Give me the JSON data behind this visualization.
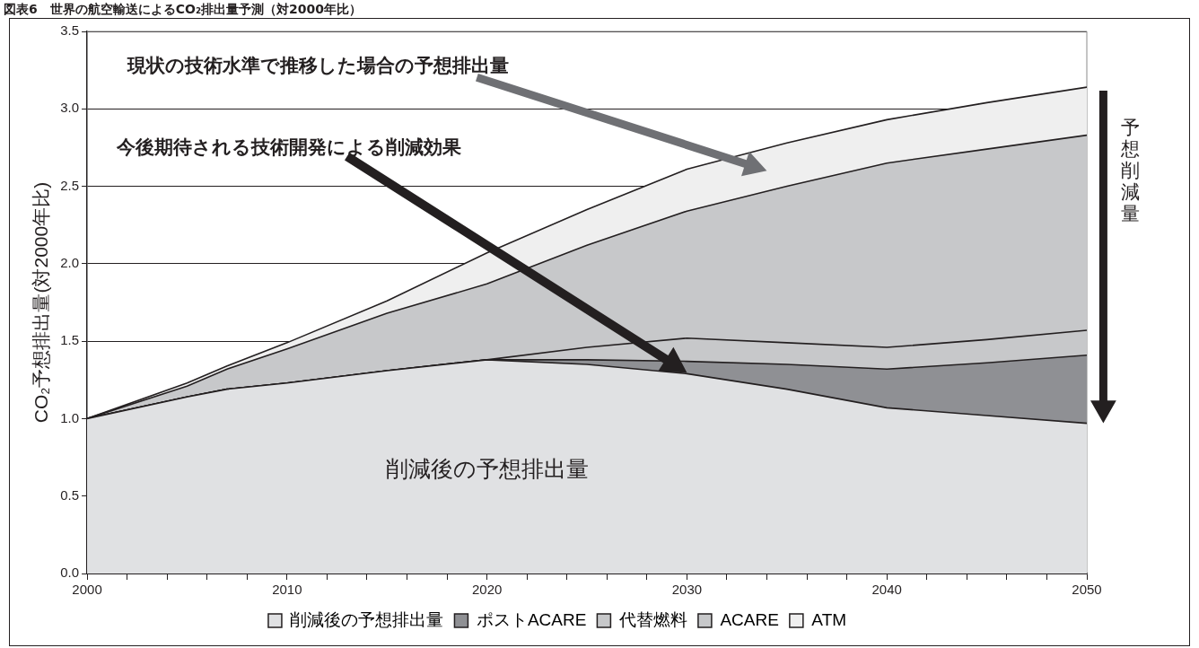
{
  "chart_data": {
    "type": "area",
    "stacked": true,
    "title": "図表6　世界の航空輸送によるCO₂排出量予測（対2000年比）",
    "ylabel": "CO₂予想排出量(対2000年比)",
    "x": [
      2000,
      2005,
      2007,
      2010,
      2015,
      2020,
      2025,
      2030,
      2035,
      2040,
      2045,
      2050
    ],
    "series": [
      {
        "name": "削減後の予想排出量",
        "color": "#e0e1e3",
        "values": [
          1.0,
          1.14,
          1.19,
          1.23,
          1.31,
          1.38,
          1.35,
          1.29,
          1.19,
          1.07,
          1.02,
          0.97
        ]
      },
      {
        "name": "ポストACARE",
        "color": "#8f9094",
        "values": [
          0,
          0,
          0,
          0,
          0,
          0,
          0.03,
          0.08,
          0.16,
          0.25,
          0.34,
          0.44
        ]
      },
      {
        "name": "代替燃料",
        "color": "#c7c8ca",
        "values": [
          0,
          0,
          0,
          0,
          0,
          0,
          0.08,
          0.15,
          0.14,
          0.14,
          0.15,
          0.16
        ]
      },
      {
        "name": "ACARE",
        "color": "#c7c8ca",
        "values": [
          0,
          0.07,
          0.13,
          0.22,
          0.37,
          0.49,
          0.66,
          0.82,
          1.01,
          1.19,
          1.23,
          1.26
        ]
      },
      {
        "name": "ATM",
        "color": "#efefef",
        "values": [
          0,
          0.02,
          0.02,
          0.04,
          0.08,
          0.2,
          0.23,
          0.27,
          0.28,
          0.28,
          0.3,
          0.31
        ]
      }
    ],
    "xlim": [
      2000,
      2050
    ],
    "xticks": [
      2000,
      {
        "value": 2002,
        "label": null
      },
      {
        "value": 2004,
        "label": null
      },
      {
        "value": 2006,
        "label": null
      },
      {
        "value": 2008,
        "label": null
      },
      2010,
      {
        "value": 2012,
        "label": null
      },
      {
        "value": 2014,
        "label": null
      },
      {
        "value": 2016,
        "label": null
      },
      {
        "value": 2018,
        "label": null
      },
      2020,
      {
        "value": 2022,
        "label": null
      },
      {
        "value": 2024,
        "label": null
      },
      {
        "value": 2026,
        "label": null
      },
      {
        "value": 2028,
        "label": null
      },
      2030,
      {
        "value": 2032,
        "label": null
      },
      {
        "value": 2034,
        "label": null
      },
      {
        "value": 2036,
        "label": null
      },
      {
        "value": 2038,
        "label": null
      },
      2040,
      {
        "value": 2042,
        "label": null
      },
      {
        "value": 2044,
        "label": null
      },
      {
        "value": 2046,
        "label": null
      },
      {
        "value": 2048,
        "label": null
      },
      2050
    ],
    "ylim": [
      0,
      3.5
    ],
    "yticks": [
      {
        "value": 0,
        "label": "0.0"
      },
      0.5,
      {
        "value": 1,
        "label": "1.0"
      },
      1.5,
      {
        "value": 2,
        "label": "2.0"
      },
      2.5,
      {
        "value": 3,
        "label": "3.0"
      },
      3.5
    ],
    "grid": "y",
    "legend": "bottom",
    "annotations": [
      "現状の技術水準で推移した場合の予想排出量",
      "今後期待される技術開発による削減効果",
      "削減後の予想排出量",
      "予想削減量"
    ]
  }
}
